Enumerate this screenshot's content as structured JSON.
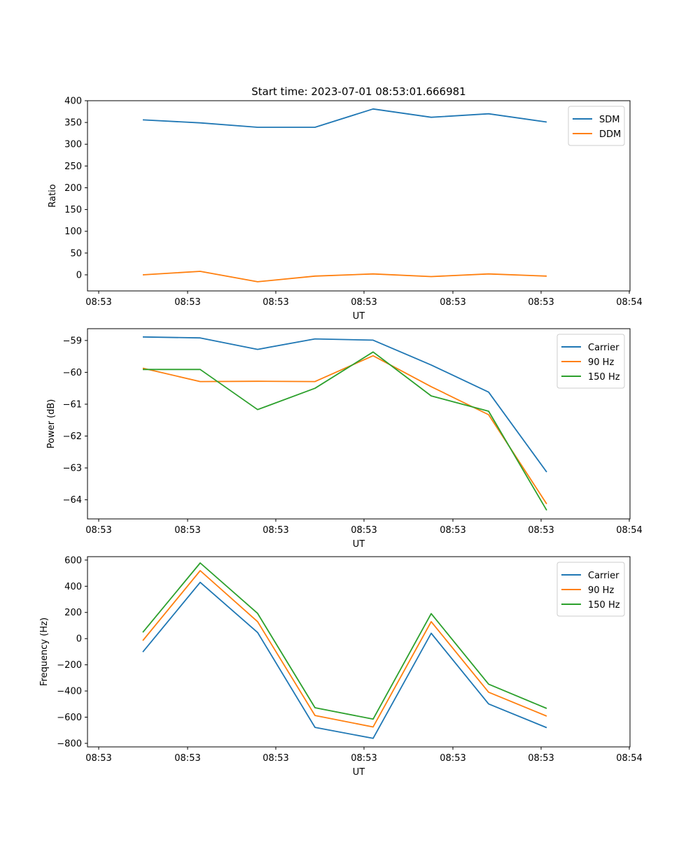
{
  "chart_data": [
    {
      "type": "line",
      "title": "Start time: 2023-07-01 08:53:01.666981",
      "xlabel": "UT",
      "ylabel": "Ratio",
      "x_tick_labels": [
        "08:53",
        "08:53",
        "08:53",
        "08:53",
        "08:53",
        "08:53",
        "08:54"
      ],
      "y_ticks": [
        "0",
        "50",
        "100",
        "150",
        "200",
        "250",
        "300",
        "350",
        "400"
      ],
      "ylim": [
        -37,
        400
      ],
      "legend_position": "top-right",
      "series": [
        {
          "name": "SDM",
          "color": "#1f77b4",
          "values": [
            356,
            349,
            339,
            339,
            381,
            362,
            370,
            351
          ]
        },
        {
          "name": "DDM",
          "color": "#ff7f0e",
          "values": [
            0,
            8,
            -16,
            -3,
            2,
            -4,
            2,
            -3
          ]
        }
      ]
    },
    {
      "type": "line",
      "title": "",
      "xlabel": "UT",
      "ylabel": "Power (dB)",
      "x_tick_labels": [
        "08:53",
        "08:53",
        "08:53",
        "08:53",
        "08:53",
        "08:53",
        "08:54"
      ],
      "y_ticks": [
        "−64",
        "−63",
        "−62",
        "−61",
        "−60",
        "−59"
      ],
      "ylim": [
        -64.6,
        -58.63
      ],
      "legend_position": "top-right",
      "series": [
        {
          "name": "Carrier",
          "color": "#1f77b4",
          "values": [
            -58.89,
            -58.92,
            -59.28,
            -58.95,
            -58.99,
            -59.77,
            -60.62,
            -63.13
          ]
        },
        {
          "name": "90 Hz",
          "color": "#ff7f0e",
          "values": [
            -59.87,
            -60.29,
            -60.28,
            -60.29,
            -59.48,
            -60.45,
            -61.33,
            -64.13
          ]
        },
        {
          "name": "150 Hz",
          "color": "#2ca02c",
          "values": [
            -59.91,
            -59.91,
            -61.17,
            -60.5,
            -59.36,
            -60.74,
            -61.22,
            -64.33
          ]
        }
      ]
    },
    {
      "type": "line",
      "title": "",
      "xlabel": "UT",
      "ylabel": "Frequency (Hz)",
      "x_tick_labels": [
        "08:53",
        "08:53",
        "08:53",
        "08:53",
        "08:53",
        "08:53",
        "08:54"
      ],
      "y_ticks": [
        "−800",
        "−600",
        "−400",
        "−200",
        "0",
        "200",
        "400",
        "600"
      ],
      "ylim": [
        -827,
        626
      ],
      "legend_position": "top-right",
      "series": [
        {
          "name": "Carrier",
          "color": "#1f77b4",
          "values": [
            -102,
            430,
            47,
            -678,
            -762,
            41,
            -499,
            -680
          ]
        },
        {
          "name": "90 Hz",
          "color": "#ff7f0e",
          "values": [
            -15,
            519,
            130,
            -587,
            -675,
            130,
            -409,
            -592
          ]
        },
        {
          "name": "150 Hz",
          "color": "#2ca02c",
          "values": [
            48,
            578,
            193,
            -528,
            -615,
            191,
            -348,
            -533
          ]
        }
      ]
    }
  ]
}
